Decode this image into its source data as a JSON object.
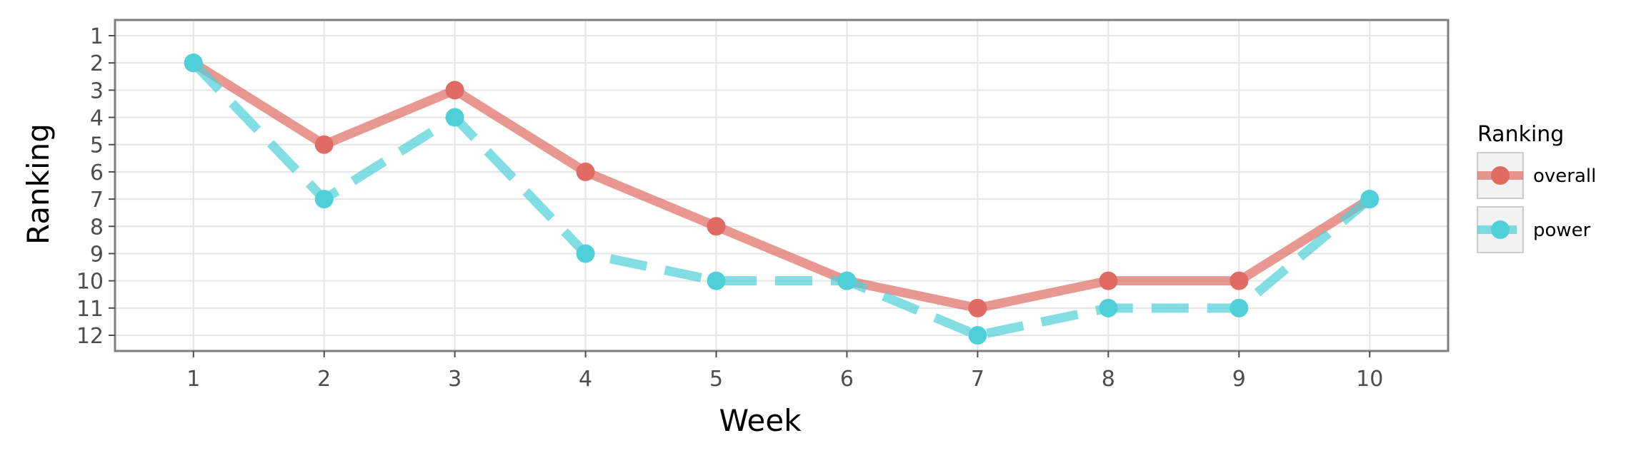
{
  "chart_data": {
    "type": "line",
    "xlabel": "Week",
    "ylabel": "Ranking",
    "x": [
      1,
      2,
      3,
      4,
      5,
      6,
      7,
      8,
      9,
      10
    ],
    "x_ticks": [
      "1",
      "2",
      "3",
      "4",
      "5",
      "6",
      "7",
      "8",
      "9",
      "10"
    ],
    "y_ticks": [
      "1",
      "2",
      "3",
      "4",
      "5",
      "6",
      "7",
      "8",
      "9",
      "10",
      "11",
      "12"
    ],
    "xlim": [
      0.4,
      10.6
    ],
    "ylim": [
      1,
      12
    ],
    "y_reversed": true,
    "grid": true,
    "legend": {
      "title": "Ranking",
      "position": "right"
    },
    "series": [
      {
        "name": "overall",
        "values": [
          2,
          5,
          3,
          6,
          8,
          10,
          11,
          10,
          10,
          7
        ],
        "color": "#e06b63",
        "line_style": "solid"
      },
      {
        "name": "power",
        "values": [
          2,
          7,
          4,
          9,
          10,
          10,
          12,
          11,
          11,
          7
        ],
        "color": "#4fd0d9",
        "line_style": "dashed"
      }
    ]
  }
}
